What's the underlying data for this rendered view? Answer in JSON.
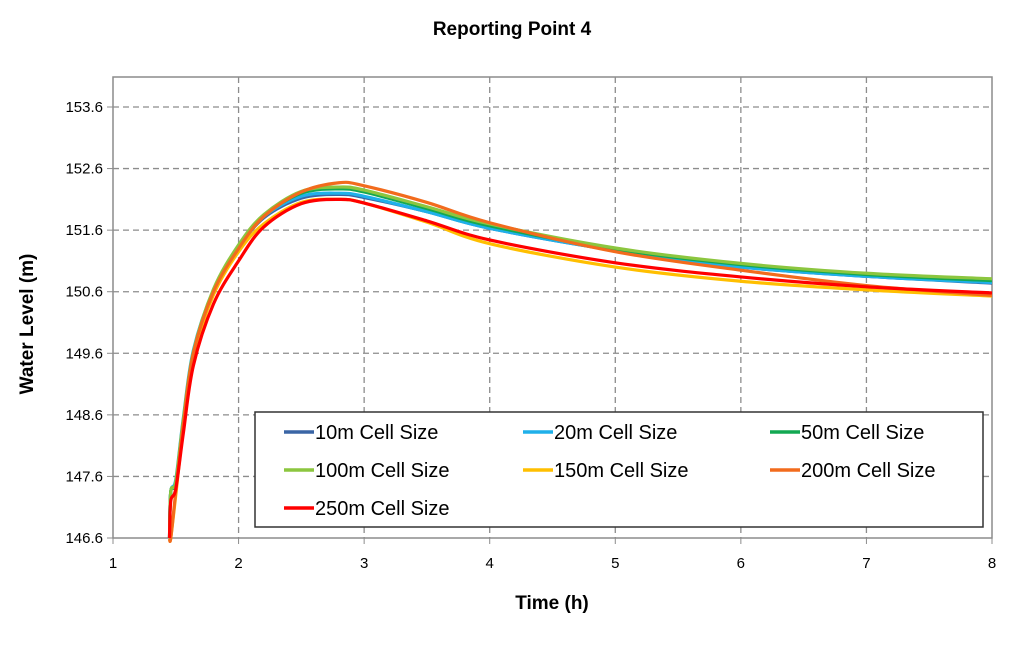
{
  "chart_data": {
    "type": "line",
    "title": "Reporting Point 4",
    "xlabel": "Time (h)",
    "ylabel": "Water Level (m)",
    "xlim": [
      1,
      8
    ],
    "ylim": [
      146.6,
      154.1
    ],
    "xticks": [
      "1",
      "2",
      "3",
      "4",
      "5",
      "6",
      "7",
      "8"
    ],
    "yticks": [
      "146.6",
      "147.6",
      "148.6",
      "149.6",
      "150.6",
      "151.6",
      "152.6",
      "153.6"
    ],
    "grid": true,
    "legend_position": "bottom-center inside plot",
    "x": [
      1.45,
      1.46,
      1.5,
      1.56,
      1.64,
      1.8,
      2.0,
      2.2,
      2.5,
      2.8,
      3.0,
      3.5,
      4,
      5,
      6,
      7,
      8
    ],
    "series": [
      {
        "name": "10m Cell Size",
        "color": "#3a65a5",
        "values": [
          146.6,
          147.35,
          147.5,
          148.5,
          149.6,
          150.6,
          151.3,
          151.8,
          152.12,
          152.18,
          152.13,
          151.9,
          151.63,
          151.27,
          151.0,
          150.85,
          150.74
        ]
      },
      {
        "name": "20m Cell Size",
        "color": "#1fb0ea",
        "values": [
          146.6,
          147.35,
          147.55,
          148.55,
          149.65,
          150.62,
          151.32,
          151.82,
          152.15,
          152.2,
          152.15,
          151.9,
          151.63,
          151.27,
          151.0,
          150.85,
          150.75
        ]
      },
      {
        "name": "50m Cell Size",
        "color": "#12a852",
        "values": [
          146.6,
          147.35,
          147.5,
          148.5,
          149.6,
          150.62,
          151.33,
          151.83,
          152.2,
          152.27,
          152.22,
          151.95,
          151.67,
          151.29,
          151.04,
          150.88,
          150.78
        ]
      },
      {
        "name": "100m Cell Size",
        "color": "#8cc63f",
        "values": [
          146.6,
          147.35,
          147.52,
          148.52,
          149.62,
          150.64,
          151.36,
          151.85,
          152.23,
          152.3,
          152.25,
          151.98,
          151.7,
          151.31,
          151.06,
          150.9,
          150.81
        ]
      },
      {
        "name": "150m Cell Size",
        "color": "#ffbf00",
        "values": [
          146.6,
          146.6,
          147.3,
          148.4,
          149.55,
          150.55,
          151.25,
          151.7,
          152.05,
          152.1,
          152.04,
          151.73,
          151.38,
          151.0,
          150.77,
          150.63,
          150.53
        ]
      },
      {
        "name": "200m Cell Size",
        "color": "#f26b1d",
        "values": [
          146.6,
          146.6,
          147.35,
          148.45,
          149.6,
          150.6,
          151.3,
          151.82,
          152.22,
          152.37,
          152.32,
          152.05,
          151.72,
          151.25,
          150.95,
          150.7,
          150.54
        ]
      },
      {
        "name": "250m Cell Size",
        "color": "#ff0000",
        "values": [
          146.6,
          147.2,
          147.4,
          148.3,
          149.4,
          150.4,
          151.1,
          151.65,
          152.03,
          152.1,
          152.04,
          151.75,
          151.44,
          151.07,
          150.84,
          150.68,
          150.58
        ]
      }
    ]
  }
}
